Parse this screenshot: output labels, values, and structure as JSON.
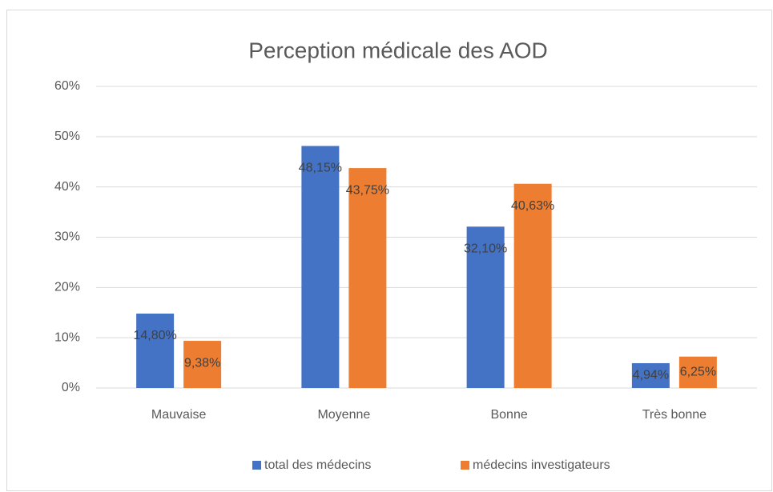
{
  "chart_data": {
    "type": "bar",
    "title": "Perception médicale des AOD",
    "categories": [
      "Mauvaise",
      "Moyenne",
      "Bonne",
      "Très bonne"
    ],
    "series": [
      {
        "name": "total des médecins",
        "color": "#4472c4",
        "values": [
          14.8,
          48.15,
          32.1,
          4.94
        ],
        "value_labels": [
          "14,80%",
          "48,15%",
          "32,10%",
          "4,94%"
        ]
      },
      {
        "name": "médecins investigateurs",
        "color": "#ed7d31",
        "values": [
          9.38,
          43.75,
          40.63,
          6.25
        ],
        "value_labels": [
          "9,38%",
          "43,75%",
          "40,63%",
          "6,25%"
        ]
      }
    ],
    "ylim": [
      0,
      60
    ],
    "yticks": [
      {
        "value": 0,
        "label": "0%"
      },
      {
        "value": 10,
        "label": "10%"
      },
      {
        "value": 20,
        "label": "20%"
      },
      {
        "value": 30,
        "label": "30%"
      },
      {
        "value": 40,
        "label": "40%"
      },
      {
        "value": 50,
        "label": "50%"
      },
      {
        "value": 60,
        "label": "60%"
      }
    ],
    "grid": true,
    "legend": "bottom"
  }
}
